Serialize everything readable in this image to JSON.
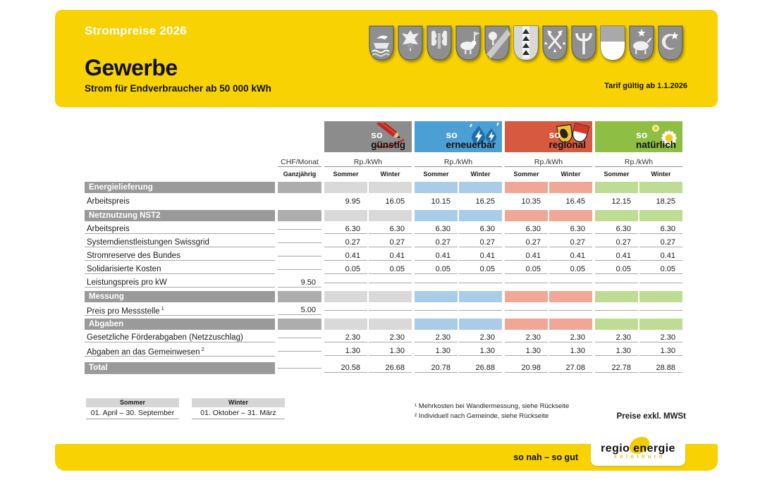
{
  "header": {
    "pretitle": "Strompreise 2026",
    "title": "Gewerbe",
    "subtitle": "Strom für Endverbraucher ab 50 000 kWh",
    "validity": "Tarif gültig ab 1.1.2026",
    "coats_of_arms": [
      "boat-waves",
      "eagle",
      "twin-lions",
      "sheep-banner",
      "tree-bend",
      "black-pale",
      "crossed-axes",
      "trident",
      "split-white",
      "bull-star",
      "crescent-star"
    ]
  },
  "products": [
    {
      "id": "guenstig",
      "prefix": "so",
      "name": "günstig",
      "icon": "pencil-icon",
      "header_color": "#8C8C8C",
      "tint_color": "#D9D9D9",
      "unit": "Rp./kWh"
    },
    {
      "id": "erneuerbar",
      "prefix": "so",
      "name": "erneuerbar",
      "icon": "lightning-drops-icon",
      "header_color": "#4C9FD4",
      "tint_color": "#A9CCE9",
      "unit": "Rp./kWh"
    },
    {
      "id": "regional",
      "prefix": "so",
      "name": "regional",
      "icon": "twin-shields-icon",
      "header_color": "#D75A40",
      "tint_color": "#F1A795",
      "unit": "Rp./kWh"
    },
    {
      "id": "natuerlich",
      "prefix": "so",
      "name": "natürlich",
      "icon": "daisy-icon",
      "header_color": "#8EBE44",
      "tint_color": "#BEDC94",
      "unit": "Rp./kWh"
    }
  ],
  "columns": {
    "chf_header": "CHF/Monat",
    "chf_sub": "Ganzjährig",
    "season_sub": [
      "Sommer",
      "Winter"
    ]
  },
  "table": {
    "rows": [
      {
        "type": "section",
        "label": "Energielieferung"
      },
      {
        "type": "data",
        "label": "Arbeitspreis",
        "chf": "",
        "values": [
          [
            "9.95",
            "16.05"
          ],
          [
            "10.15",
            "16.25"
          ],
          [
            "10.35",
            "16.45"
          ],
          [
            "12.15",
            "18.25"
          ]
        ],
        "line": false
      },
      {
        "type": "section",
        "label": "Netznutzung NST2"
      },
      {
        "type": "data",
        "label": "Arbeitspreis",
        "chf": "",
        "values": [
          [
            "6.30",
            "6.30"
          ],
          [
            "6.30",
            "6.30"
          ],
          [
            "6.30",
            "6.30"
          ],
          [
            "6.30",
            "6.30"
          ]
        ],
        "line": true
      },
      {
        "type": "data",
        "label": "Systemdienstleistungen Swissgrid",
        "chf": "",
        "values": [
          [
            "0.27",
            "0.27"
          ],
          [
            "0.27",
            "0.27"
          ],
          [
            "0.27",
            "0.27"
          ],
          [
            "0.27",
            "0.27"
          ]
        ],
        "line": true
      },
      {
        "type": "data",
        "label": "Stromreserve des Bundes",
        "chf": "",
        "values": [
          [
            "0.41",
            "0.41"
          ],
          [
            "0.41",
            "0.41"
          ],
          [
            "0.41",
            "0.41"
          ],
          [
            "0.41",
            "0.41"
          ]
        ],
        "line": true
      },
      {
        "type": "data",
        "label": "Solidarisierte Kosten",
        "chf": "",
        "values": [
          [
            "0.05",
            "0.05"
          ],
          [
            "0.05",
            "0.05"
          ],
          [
            "0.05",
            "0.05"
          ],
          [
            "0.05",
            "0.05"
          ]
        ],
        "line": true
      },
      {
        "type": "data",
        "label": "Leistungspreis pro kW",
        "chf": "9.50",
        "values": [
          [
            "",
            ""
          ],
          [
            "",
            ""
          ],
          [
            "",
            ""
          ],
          [
            "",
            ""
          ]
        ],
        "line": true
      },
      {
        "type": "section",
        "label": "Messung"
      },
      {
        "type": "data",
        "label": "Preis pro Messstelle",
        "sup": "1",
        "chf": "5.00",
        "values": [
          [
            "",
            ""
          ],
          [
            "",
            ""
          ],
          [
            "",
            ""
          ],
          [
            "",
            ""
          ]
        ],
        "line": true
      },
      {
        "type": "section",
        "label": "Abgaben"
      },
      {
        "type": "data",
        "label": "Gesetzliche Förderabgaben (Netzzuschlag)",
        "chf": "",
        "values": [
          [
            "2.30",
            "2.30"
          ],
          [
            "2.30",
            "2.30"
          ],
          [
            "2.30",
            "2.30"
          ],
          [
            "2.30",
            "2.30"
          ]
        ],
        "line": true
      },
      {
        "type": "data",
        "label": "Abgaben an das Gemeinwesen",
        "sup": "2",
        "chf": "",
        "values": [
          [
            "1.30",
            "1.30"
          ],
          [
            "1.30",
            "1.30"
          ],
          [
            "1.30",
            "1.30"
          ],
          [
            "1.30",
            "1.30"
          ]
        ],
        "line": true
      },
      {
        "type": "total",
        "label": "Total",
        "chf": "",
        "values": [
          [
            "20.58",
            "26.68"
          ],
          [
            "20.78",
            "26.88"
          ],
          [
            "20.98",
            "27.08"
          ],
          [
            "22.78",
            "28.88"
          ]
        ],
        "line": true
      }
    ]
  },
  "legend": {
    "sommer": {
      "label": "Sommer",
      "range": "01. April – 30. September"
    },
    "winter": {
      "label": "Winter",
      "range": "01. Oktober – 31. März"
    }
  },
  "footnotes": [
    "¹ Mehrkosten bei Wandlermessung, siehe Rückseite",
    "² Individuell nach Gemeinde, siehe Rückseite"
  ],
  "vat_note": "Preise exkl. MWSt",
  "footer": {
    "slogan": "so nah – so gut",
    "logo_line1": "regio energie",
    "logo_line2": "solothurn"
  },
  "colors": {
    "brand_yellow": "#F8D202",
    "section_bar": "#9A9A9A",
    "chf_bar": "#ADADAD"
  }
}
